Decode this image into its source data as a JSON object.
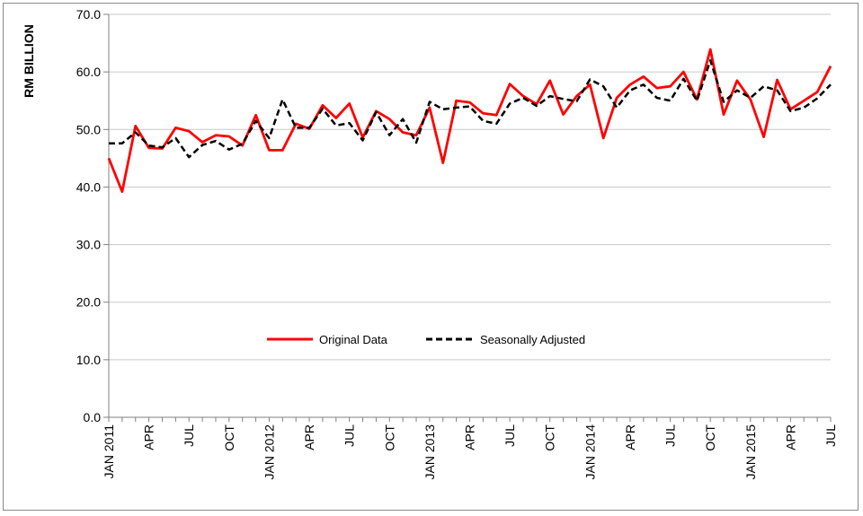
{
  "chart_data": {
    "type": "line",
    "ylabel": "RM BILLION",
    "xlabel": "",
    "title": "",
    "ylim": [
      0,
      70
    ],
    "yticks": [
      "0.0",
      "10.0",
      "20.0",
      "30.0",
      "40.0",
      "50.0",
      "60.0",
      "70.0"
    ],
    "grid": "horizontal",
    "legend_position": "center",
    "x_tick_labels": [
      "JAN 2011",
      "APR",
      "JUL",
      "OCT",
      "JAN 2012",
      "APR",
      "JUL",
      "OCT",
      "JAN 2013",
      "APR",
      "JUL",
      "OCT",
      "JAN 2014",
      "APR",
      "JUL",
      "OCT",
      "JAN 2015",
      "APR",
      "JUL"
    ],
    "x_tick_month_index": [
      0,
      3,
      6,
      9,
      12,
      15,
      18,
      21,
      24,
      27,
      30,
      33,
      36,
      39,
      42,
      45,
      48,
      51,
      54
    ],
    "series": [
      {
        "name": "Original Data",
        "color": "#ff0000",
        "style": "solid",
        "values": [
          45.0,
          39.2,
          50.6,
          46.8,
          46.7,
          50.3,
          49.7,
          47.8,
          49.0,
          48.8,
          47.2,
          52.5,
          46.4,
          46.4,
          51.0,
          50.1,
          54.2,
          52.0,
          54.5,
          48.6,
          53.2,
          51.8,
          49.5,
          49.0,
          53.8,
          44.2,
          55.0,
          54.7,
          52.8,
          52.5,
          57.9,
          55.8,
          54.4,
          58.5,
          52.6,
          55.8,
          57.8,
          48.5,
          55.5,
          57.8,
          59.2,
          57.2,
          57.5,
          60.0,
          55.2,
          63.9,
          52.6,
          58.5,
          55.2,
          48.7,
          58.6,
          53.5,
          55.0,
          56.5,
          61.0
        ]
      },
      {
        "name": "Seasonally Adjusted",
        "color": "#000000",
        "style": "dashed",
        "values": [
          47.6,
          47.6,
          49.5,
          47.2,
          46.9,
          48.5,
          45.2,
          47.3,
          48.0,
          46.5,
          47.5,
          51.5,
          48.5,
          55.2,
          50.3,
          50.3,
          53.6,
          50.7,
          51.1,
          48.1,
          53.0,
          49.0,
          51.8,
          47.7,
          54.8,
          53.5,
          53.8,
          54.0,
          51.5,
          51.0,
          54.5,
          55.5,
          54.1,
          55.8,
          55.3,
          54.9,
          58.7,
          57.5,
          53.8,
          56.8,
          57.8,
          55.5,
          55.0,
          58.8,
          55.0,
          62.0,
          54.8,
          56.8,
          55.5,
          57.5,
          56.8,
          53.2,
          53.8,
          55.4,
          57.8
        ]
      }
    ]
  }
}
